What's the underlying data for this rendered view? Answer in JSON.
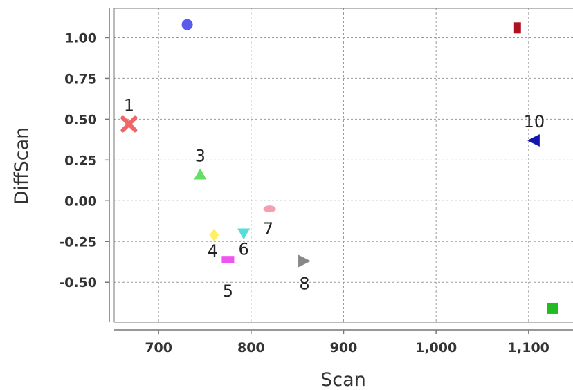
{
  "chart_data": {
    "type": "scatter",
    "xlabel": "Scan",
    "ylabel": "DiffScan",
    "xlim": [
      652,
      1148
    ],
    "ylim": [
      -0.745,
      1.18
    ],
    "x_ticks": [
      700,
      800,
      900,
      1000,
      1100
    ],
    "x_tick_labels": [
      "700",
      "800",
      "900",
      "1,000",
      "1,100"
    ],
    "y_ticks": [
      1.0,
      0.75,
      0.5,
      0.25,
      0.0,
      -0.25,
      -0.5
    ],
    "y_tick_labels": [
      "1.00",
      "0.75",
      "0.50",
      "0.25",
      "0.00",
      "-0.25",
      "-0.50"
    ],
    "grid": true,
    "points": [
      {
        "label": "1",
        "x": 668,
        "y": 0.47,
        "shape": "x-mark",
        "color": "#f06565"
      },
      {
        "label": "",
        "x": 731,
        "y": 1.08,
        "shape": "circle",
        "color": "#5a5aee"
      },
      {
        "label": "3",
        "x": 745,
        "y": 0.16,
        "shape": "triangle-up",
        "color": "#66dd66"
      },
      {
        "label": "4",
        "x": 760,
        "y": -0.21,
        "shape": "diamond",
        "color": "#ffee66"
      },
      {
        "label": "5",
        "x": 775,
        "y": -0.36,
        "shape": "rect-wide",
        "color": "#ee55ee"
      },
      {
        "label": "6",
        "x": 792,
        "y": -0.2,
        "shape": "triangle-down",
        "color": "#55dddd"
      },
      {
        "label": "7",
        "x": 820,
        "y": -0.05,
        "shape": "ellipse",
        "color": "#f5a0b0"
      },
      {
        "label": "8",
        "x": 857,
        "y": -0.37,
        "shape": "triangle-right",
        "color": "#888888"
      },
      {
        "label": "",
        "x": 1088,
        "y": 1.06,
        "shape": "rect-tall",
        "color": "#b01020"
      },
      {
        "label": "10",
        "x": 1106,
        "y": 0.37,
        "shape": "triangle-left",
        "color": "#1414b0"
      },
      {
        "label": "",
        "x": 1126,
        "y": -0.66,
        "shape": "square",
        "color": "#22bb22"
      }
    ]
  }
}
